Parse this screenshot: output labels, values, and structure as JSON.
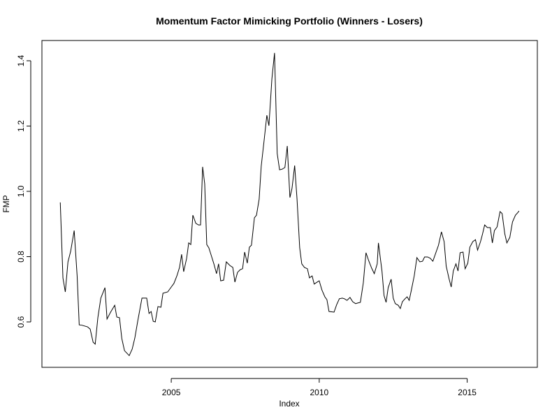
{
  "chart_data": {
    "type": "line",
    "title": "Momentum Factor Mimicking Portfolio (Winners - Losers)",
    "x_label": "Index",
    "y_label": "FMP",
    "xlim": [
      2000.63,
      2017.37
    ],
    "xticks": [
      2005,
      2010,
      2015
    ],
    "ylim": [
      0.461,
      1.462
    ],
    "yticks": [
      0.6,
      0.8,
      {
        "value": 1,
        "label": "1.0"
      },
      1.2,
      1.4
    ],
    "grid": false,
    "series": [
      {
        "name": "FMP",
        "color": "#000000",
        "x": [
          2001.25,
          2001.34,
          2001.42,
          2001.51,
          2001.6,
          2001.72,
          2001.82,
          2001.89,
          2001.98,
          2002.17,
          2002.26,
          2002.36,
          2002.43,
          2002.52,
          2002.62,
          2002.76,
          2002.83,
          2002.95,
          2003.09,
          2003.16,
          2003.25,
          2003.33,
          2003.42,
          2003.58,
          2003.68,
          2003.77,
          2003.87,
          2004.01,
          2004.13,
          2004.17,
          2004.25,
          2004.32,
          2004.39,
          2004.46,
          2004.55,
          2004.65,
          2004.72,
          2004.88,
          2005.0,
          2005.09,
          2005.19,
          2005.28,
          2005.35,
          2005.42,
          2005.52,
          2005.59,
          2005.66,
          2005.73,
          2005.83,
          2005.92,
          2005.99,
          2006.06,
          2006.13,
          2006.2,
          2006.27,
          2006.34,
          2006.44,
          2006.53,
          2006.6,
          2006.67,
          2006.77,
          2006.86,
          2006.98,
          2007.08,
          2007.15,
          2007.24,
          2007.33,
          2007.41,
          2007.48,
          2007.57,
          2007.64,
          2007.71,
          2007.81,
          2007.88,
          2007.97,
          2008.04,
          2008.14,
          2008.23,
          2008.3,
          2008.4,
          2008.49,
          2008.58,
          2008.66,
          2008.75,
          2008.84,
          2008.92,
          2009.01,
          2009.08,
          2009.17,
          2009.25,
          2009.34,
          2009.41,
          2009.5,
          2009.6,
          2009.67,
          2009.76,
          2009.83,
          2009.93,
          2010.0,
          2010.09,
          2010.19,
          2010.26,
          2010.33,
          2010.5,
          2010.59,
          2010.68,
          2010.78,
          2010.85,
          2010.94,
          2011.04,
          2011.13,
          2011.23,
          2011.3,
          2011.39,
          2011.49,
          2011.58,
          2011.67,
          2011.77,
          2011.86,
          2011.96,
          2012.0,
          2012.12,
          2012.19,
          2012.26,
          2012.33,
          2012.43,
          2012.5,
          2012.57,
          2012.67,
          2012.74,
          2012.81,
          2012.9,
          2012.97,
          2013.04,
          2013.11,
          2013.21,
          2013.3,
          2013.4,
          2013.49,
          2013.56,
          2013.66,
          2013.75,
          2013.84,
          2013.94,
          2014.03,
          2014.13,
          2014.22,
          2014.29,
          2014.39,
          2014.46,
          2014.53,
          2014.62,
          2014.69,
          2014.76,
          2014.86,
          2014.93,
          2015.02,
          2015.09,
          2015.19,
          2015.28,
          2015.35,
          2015.45,
          2015.52,
          2015.59,
          2015.68,
          2015.78,
          2015.85,
          2015.92,
          2016.01,
          2016.11,
          2016.18,
          2016.27,
          2016.34,
          2016.44,
          2016.53,
          2016.63,
          2016.72,
          2016.75
        ],
        "values": [
          0.966,
          0.735,
          0.692,
          0.784,
          0.816,
          0.88,
          0.741,
          0.591,
          0.59,
          0.585,
          0.578,
          0.538,
          0.532,
          0.613,
          0.673,
          0.705,
          0.609,
          0.63,
          0.651,
          0.615,
          0.613,
          0.549,
          0.512,
          0.497,
          0.517,
          0.551,
          0.604,
          0.673,
          0.673,
          0.673,
          0.626,
          0.632,
          0.602,
          0.6,
          0.647,
          0.645,
          0.688,
          0.692,
          0.707,
          0.718,
          0.741,
          0.767,
          0.807,
          0.754,
          0.795,
          0.842,
          0.837,
          0.927,
          0.902,
          0.897,
          0.897,
          1.075,
          1.023,
          0.837,
          0.827,
          0.807,
          0.778,
          0.748,
          0.778,
          0.726,
          0.728,
          0.784,
          0.773,
          0.767,
          0.722,
          0.752,
          0.76,
          0.763,
          0.814,
          0.78,
          0.829,
          0.835,
          0.919,
          0.927,
          0.976,
          1.077,
          1.158,
          1.233,
          1.201,
          1.344,
          1.424,
          1.116,
          1.066,
          1.068,
          1.073,
          1.139,
          0.981,
          1.009,
          1.079,
          0.976,
          0.827,
          0.778,
          0.767,
          0.763,
          0.735,
          0.741,
          0.716,
          0.722,
          0.726,
          0.698,
          0.677,
          0.668,
          0.632,
          0.63,
          0.653,
          0.671,
          0.673,
          0.671,
          0.666,
          0.675,
          0.662,
          0.656,
          0.658,
          0.66,
          0.72,
          0.812,
          0.788,
          0.765,
          0.748,
          0.778,
          0.842,
          0.756,
          0.681,
          0.66,
          0.705,
          0.731,
          0.673,
          0.656,
          0.651,
          0.641,
          0.662,
          0.671,
          0.677,
          0.666,
          0.696,
          0.741,
          0.797,
          0.784,
          0.786,
          0.799,
          0.799,
          0.795,
          0.786,
          0.812,
          0.835,
          0.876,
          0.846,
          0.771,
          0.731,
          0.707,
          0.756,
          0.778,
          0.756,
          0.812,
          0.814,
          0.763,
          0.78,
          0.829,
          0.846,
          0.852,
          0.82,
          0.846,
          0.87,
          0.897,
          0.889,
          0.889,
          0.842,
          0.88,
          0.891,
          0.938,
          0.932,
          0.87,
          0.842,
          0.859,
          0.906,
          0.927,
          0.936,
          0.94
        ]
      }
    ]
  }
}
